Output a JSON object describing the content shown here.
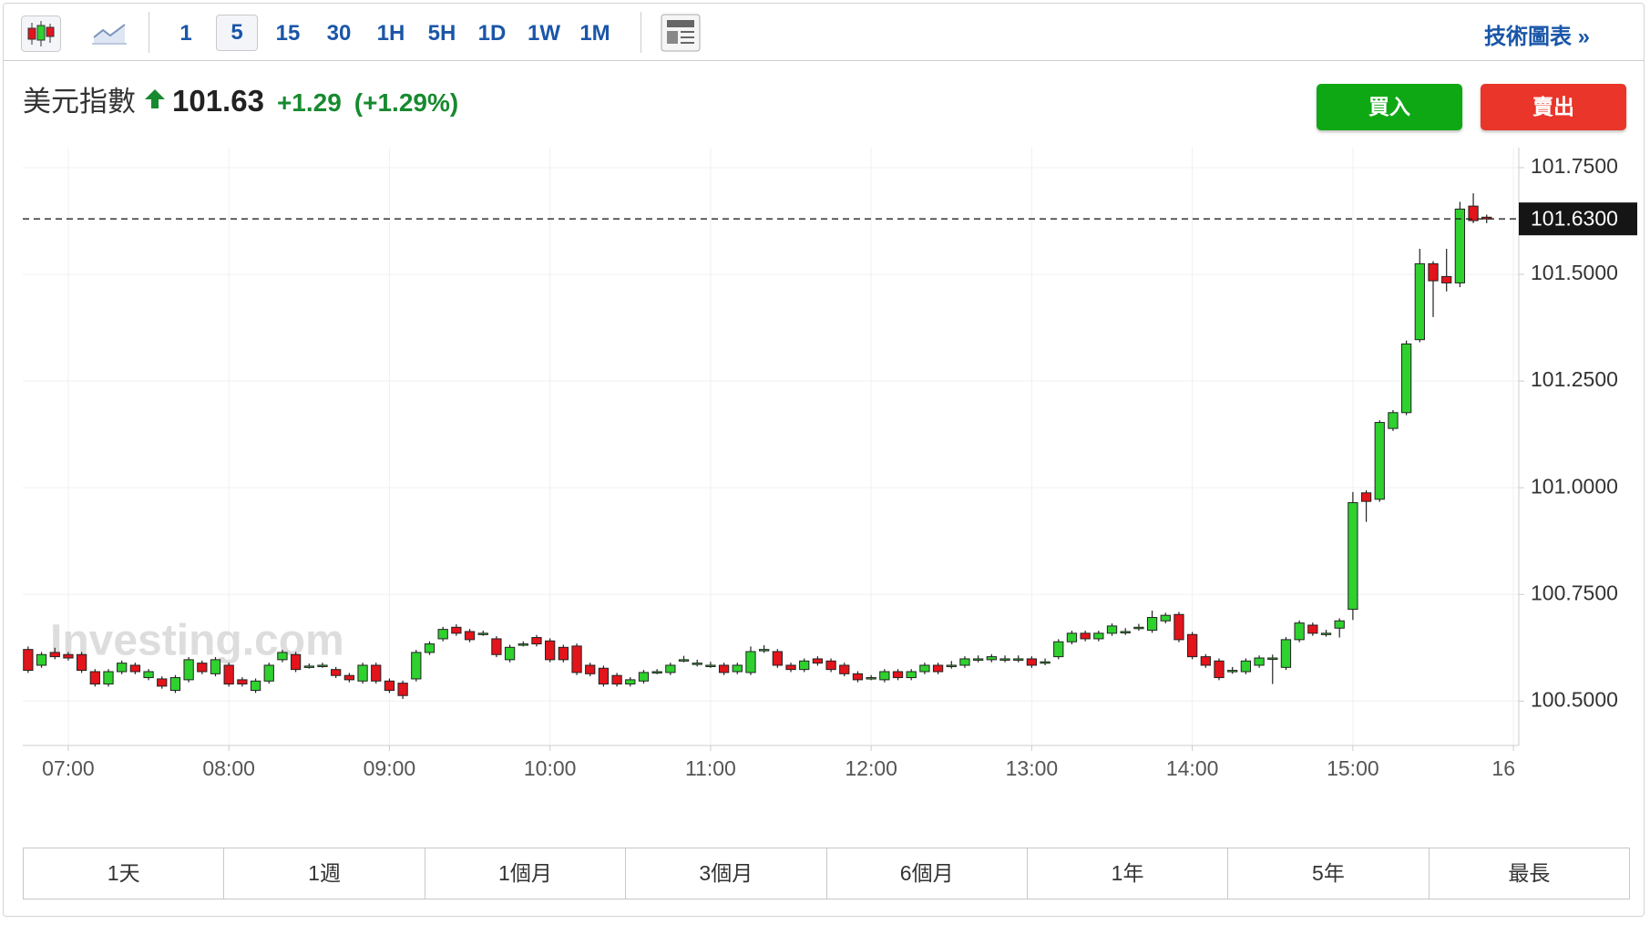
{
  "toolbar": {
    "intervals": [
      "1",
      "5",
      "15",
      "30",
      "1H",
      "5H",
      "1D",
      "1W",
      "1M"
    ],
    "technical_link": "技術圖表 »"
  },
  "quote": {
    "name": "美元指數",
    "price": "101.63",
    "change": "+1.29",
    "change_percent": "(+1.29%)"
  },
  "buttons": {
    "buy": "買入",
    "sell": "賣出"
  },
  "chart_data": {
    "type": "candlestick",
    "watermark": "Investing.com",
    "up_color": "#2fd12f",
    "down_color": "#e3141b",
    "grid": true,
    "x": [
      405,
      410,
      415,
      420,
      425,
      430,
      435,
      440,
      445,
      450,
      455,
      460,
      465,
      470,
      475,
      480,
      485,
      490,
      495,
      500,
      505,
      510,
      515,
      520,
      525,
      530,
      535,
      540,
      545,
      550,
      555,
      560,
      565,
      570,
      575,
      580,
      585,
      590,
      595,
      600,
      605,
      610,
      615,
      620,
      625,
      630,
      635,
      640,
      645,
      650,
      655,
      660,
      665,
      670,
      675,
      680,
      685,
      690,
      695,
      700,
      705,
      710,
      715,
      720,
      725,
      730,
      735,
      740,
      745,
      750,
      755,
      760,
      765,
      770,
      775,
      780,
      785,
      790,
      795,
      800,
      805,
      810,
      815,
      820,
      825,
      830,
      835,
      840,
      845,
      850,
      855,
      860,
      865,
      870,
      875,
      880,
      885,
      890,
      895,
      900,
      905,
      910,
      915,
      920,
      925,
      930,
      935,
      940,
      945,
      950
    ],
    "open": [
      100.621,
      100.584,
      100.614,
      100.609,
      100.609,
      100.569,
      100.54,
      100.569,
      100.584,
      100.555,
      100.552,
      100.525,
      100.55,
      100.589,
      100.564,
      100.584,
      100.55,
      100.525,
      100.547,
      100.597,
      100.609,
      100.582,
      100.584,
      100.574,
      100.56,
      100.547,
      100.584,
      100.547,
      100.542,
      100.552,
      100.614,
      100.646,
      100.673,
      100.663,
      100.659,
      100.646,
      100.597,
      100.634,
      100.649,
      100.641,
      100.626,
      100.629,
      100.584,
      100.577,
      100.56,
      100.54,
      100.547,
      100.569,
      100.567,
      100.597,
      100.589,
      100.584,
      100.584,
      100.569,
      100.567,
      100.621,
      100.616,
      100.584,
      100.574,
      100.599,
      100.594,
      100.584,
      100.564,
      100.555,
      100.55,
      100.569,
      100.555,
      100.569,
      100.584,
      100.584,
      100.584,
      100.599,
      100.597,
      100.599,
      100.599,
      100.599,
      100.592,
      100.604,
      100.639,
      100.659,
      100.646,
      100.659,
      100.663,
      100.673,
      100.666,
      100.688,
      100.703,
      100.656,
      100.604,
      100.594,
      100.572,
      100.569,
      100.584,
      100.601,
      100.579,
      100.644,
      100.678,
      100.659,
      100.671,
      100.715,
      100.988,
      100.973,
      101.139,
      101.176,
      101.347,
      101.525,
      101.495,
      101.48,
      101.66,
      101.634
    ],
    "high": [
      100.628,
      100.615,
      100.625,
      100.615,
      100.615,
      100.575,
      100.575,
      100.595,
      100.59,
      100.575,
      100.558,
      100.561,
      100.603,
      100.595,
      100.603,
      100.59,
      100.556,
      100.553,
      100.59,
      100.62,
      100.615,
      100.588,
      100.59,
      100.58,
      100.566,
      100.59,
      100.59,
      100.553,
      100.548,
      100.62,
      100.64,
      100.674,
      100.68,
      100.669,
      100.665,
      100.652,
      100.632,
      100.64,
      100.655,
      100.647,
      100.632,
      100.635,
      100.59,
      100.583,
      100.566,
      100.556,
      100.573,
      100.575,
      100.59,
      100.606,
      100.597,
      100.592,
      100.59,
      100.59,
      100.628,
      100.631,
      100.622,
      100.59,
      100.6,
      100.605,
      100.6,
      100.59,
      100.57,
      100.561,
      100.575,
      100.575,
      100.575,
      100.59,
      100.59,
      100.594,
      100.605,
      100.607,
      100.61,
      100.607,
      100.607,
      100.605,
      100.6,
      100.645,
      100.665,
      100.665,
      100.665,
      100.682,
      100.671,
      100.681,
      100.712,
      100.707,
      100.709,
      100.662,
      100.61,
      100.6,
      100.58,
      100.6,
      100.607,
      100.609,
      100.65,
      100.689,
      100.684,
      100.667,
      100.694,
      100.99,
      100.994,
      101.158,
      101.182,
      101.345,
      101.56,
      101.531,
      101.56,
      101.67,
      101.69,
      101.64
    ],
    "low": [
      100.566,
      100.578,
      100.598,
      100.595,
      100.566,
      100.534,
      100.534,
      100.563,
      100.563,
      100.549,
      100.529,
      100.519,
      100.544,
      100.563,
      100.558,
      100.534,
      100.534,
      100.519,
      100.541,
      100.591,
      100.568,
      100.576,
      100.578,
      100.554,
      100.544,
      100.541,
      100.541,
      100.519,
      100.505,
      100.546,
      100.608,
      100.64,
      100.653,
      100.638,
      100.653,
      100.603,
      100.591,
      100.628,
      100.628,
      100.591,
      100.591,
      100.561,
      100.558,
      100.534,
      100.534,
      100.534,
      100.541,
      100.563,
      100.561,
      100.591,
      100.581,
      100.578,
      100.561,
      100.563,
      100.561,
      100.613,
      100.578,
      100.568,
      100.568,
      100.583,
      100.568,
      100.558,
      100.544,
      100.549,
      100.544,
      100.549,
      100.549,
      100.563,
      100.563,
      100.576,
      100.578,
      100.591,
      100.591,
      100.591,
      100.591,
      100.578,
      100.584,
      100.598,
      100.633,
      100.64,
      100.64,
      100.653,
      100.655,
      100.665,
      100.66,
      100.682,
      100.638,
      100.598,
      100.578,
      100.549,
      100.564,
      100.563,
      100.578,
      100.54,
      100.573,
      100.638,
      100.653,
      100.651,
      100.649,
      100.69,
      100.92,
      100.967,
      101.133,
      101.17,
      101.341,
      101.4,
      101.46,
      101.47,
      101.62,
      101.62
    ],
    "close": [
      100.572,
      100.609,
      100.604,
      100.601,
      100.572,
      100.54,
      100.569,
      100.589,
      100.569,
      100.569,
      100.535,
      100.555,
      100.597,
      100.569,
      100.597,
      100.54,
      100.54,
      100.547,
      100.584,
      100.614,
      100.574,
      100.582,
      100.584,
      100.56,
      100.55,
      100.584,
      100.547,
      100.525,
      100.513,
      100.614,
      100.634,
      100.668,
      100.659,
      100.644,
      100.659,
      100.609,
      100.626,
      100.634,
      100.634,
      100.597,
      100.597,
      100.567,
      100.564,
      100.54,
      100.54,
      100.55,
      100.567,
      100.569,
      100.584,
      100.597,
      100.589,
      100.584,
      100.567,
      100.584,
      100.616,
      100.621,
      100.584,
      100.574,
      100.594,
      100.589,
      100.574,
      100.564,
      100.55,
      100.555,
      100.569,
      100.555,
      100.569,
      100.584,
      100.569,
      100.584,
      100.599,
      100.599,
      100.604,
      100.599,
      100.599,
      100.584,
      100.592,
      100.639,
      100.659,
      100.646,
      100.659,
      100.676,
      100.663,
      100.673,
      100.696,
      100.701,
      100.644,
      100.604,
      100.584,
      100.555,
      100.572,
      100.594,
      100.601,
      100.601,
      100.644,
      100.683,
      100.659,
      100.659,
      100.688,
      100.965,
      100.968,
      101.153,
      101.176,
      101.337,
      101.525,
      101.485,
      101.48,
      101.653,
      101.626,
      101.63
    ],
    "xlim": [
      403,
      962
    ],
    "xticks": [
      {
        "value": 420,
        "label": "07:00"
      },
      {
        "value": 480,
        "label": "08:00"
      },
      {
        "value": 540,
        "label": "09:00"
      },
      {
        "value": 600,
        "label": "10:00"
      },
      {
        "value": 660,
        "label": "11:00"
      },
      {
        "value": 720,
        "label": "12:00"
      },
      {
        "value": 780,
        "label": "13:00"
      },
      {
        "value": 840,
        "label": "14:00"
      },
      {
        "value": 900,
        "label": "15:00"
      },
      {
        "value": 960,
        "label": "16"
      }
    ],
    "ylim": [
      100.396,
      101.797
    ],
    "yticks": [
      {
        "value": 100.5,
        "label": "100.5000"
      },
      {
        "value": 100.75,
        "label": "100.7500"
      },
      {
        "value": 101,
        "label": "101.0000"
      },
      {
        "value": 101.25,
        "label": "101.2500"
      },
      {
        "value": 101.5,
        "label": "101.5000"
      },
      {
        "value": 101.75,
        "label": "101.7500"
      }
    ],
    "last_price": {
      "value": 101.63,
      "label": "101.6300"
    }
  },
  "ranges": [
    "1天",
    "1週",
    "1個月",
    "3個月",
    "6個月",
    "1年",
    "5年",
    "最長"
  ]
}
